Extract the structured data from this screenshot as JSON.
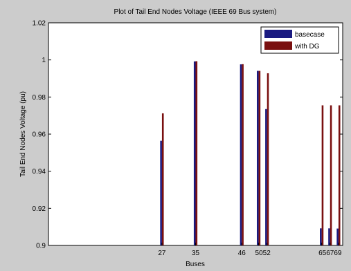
{
  "chart_data": {
    "type": "bar",
    "title": "Plot of Tail End Nodes Voltage (IEEE 69 Bus system)",
    "xlabel": "Buses",
    "ylabel": "Tail End Nodes Voltage (pu)",
    "ylim": [
      0.9,
      1.02
    ],
    "xlim": [
      0,
      70
    ],
    "yticks": [
      "0.9",
      "0.92",
      "0.94",
      "0.96",
      "0.98",
      "1",
      "1.02"
    ],
    "x": [
      27,
      35,
      46,
      50,
      52,
      65,
      67,
      69
    ],
    "xtick_labels": [
      "27",
      "35",
      "46",
      "5052",
      "656769"
    ],
    "legend_position": "top-right",
    "grid": false,
    "series": [
      {
        "name": "basecase",
        "color": "#1a1a80",
        "values": [
          0.9564,
          0.9992,
          0.9976,
          0.9941,
          0.9735,
          0.9092,
          0.9092,
          0.9091
        ]
      },
      {
        "name": "with DG",
        "color": "#7a1010",
        "values": [
          0.9712,
          0.9993,
          0.9977,
          0.9941,
          0.9928,
          0.9755,
          0.9755,
          0.9755
        ]
      }
    ]
  }
}
